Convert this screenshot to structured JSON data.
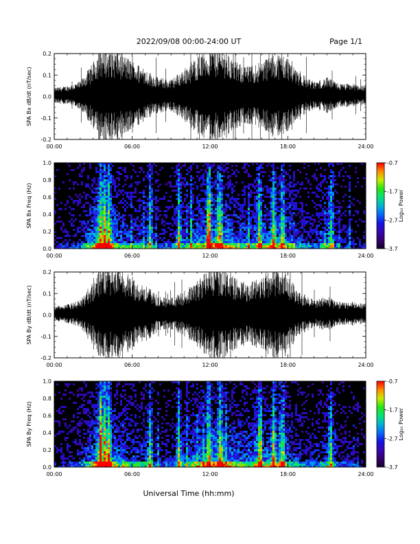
{
  "header": {
    "title": "2022/09/08  00:00-24:00 UT",
    "page": "Page 1/1"
  },
  "footer": {
    "xlabel": "Universal Time (hh:mm)"
  },
  "chart_data": [
    {
      "type": "line",
      "panel": "bx-timeseries",
      "ylabel": "SPA Bx dB/dt (nT/sec)",
      "xlim": [
        0,
        24
      ],
      "ylim": [
        -0.2,
        0.2
      ],
      "x_ticklabels": [
        "00:00",
        "06:00",
        "12:00",
        "18:00",
        "24:00"
      ],
      "y_ticks": [
        0.2,
        0.1,
        0.0,
        -0.1,
        -0.2
      ],
      "y_ticklabels": [
        "0.2",
        "0.1",
        "0.0",
        "-0.1",
        "-0.2"
      ],
      "series_color": "#000000",
      "amplitude_envelope": {
        "x_hours": [
          0,
          1,
          2,
          3,
          3.5,
          4,
          4.5,
          5,
          6,
          7,
          8,
          9,
          10,
          11,
          12,
          13,
          14,
          15,
          16,
          17,
          18,
          19,
          20,
          21,
          22,
          23,
          24
        ],
        "amplitude": [
          0.03,
          0.04,
          0.06,
          0.15,
          0.22,
          0.22,
          0.21,
          0.2,
          0.16,
          0.12,
          0.08,
          0.07,
          0.12,
          0.18,
          0.22,
          0.22,
          0.15,
          0.13,
          0.16,
          0.2,
          0.18,
          0.1,
          0.06,
          0.08,
          0.05,
          0.05,
          0.04
        ]
      }
    },
    {
      "type": "heatmap",
      "panel": "bx-spectrogram",
      "ylabel": "SPA Bx Freq (Hz)",
      "xlim": [
        0,
        24
      ],
      "ylim": [
        0,
        1
      ],
      "x_ticklabels": [
        "00:00",
        "06:00",
        "12:00",
        "18:00",
        "24:00"
      ],
      "y_ticks": [
        1.0,
        0.8,
        0.6,
        0.4,
        0.2,
        0.0
      ],
      "y_ticklabels": [
        "1.0",
        "0.8",
        "0.6",
        "0.4",
        "0.2",
        "0.0"
      ],
      "colorbar": {
        "label": "Log₁₀ Power",
        "range": [
          -3.7,
          -0.7
        ],
        "ticks": [
          "-0.7",
          "-1.7",
          "-2.7",
          "-3.7"
        ],
        "tick_values": [
          -0.7,
          -1.7,
          -2.7,
          -3.7
        ]
      },
      "activity_profile": {
        "x_hours": [
          0,
          1,
          2,
          3,
          3.5,
          4,
          5,
          6,
          7,
          8,
          9,
          10,
          11,
          12,
          13,
          14,
          15,
          16,
          17,
          18,
          19,
          20,
          21,
          22,
          23,
          24
        ],
        "level": [
          0.15,
          0.2,
          0.3,
          0.6,
          0.9,
          0.85,
          0.5,
          0.45,
          0.4,
          0.25,
          0.3,
          0.45,
          0.55,
          0.7,
          0.65,
          0.55,
          0.5,
          0.55,
          0.6,
          0.5,
          0.35,
          0.3,
          0.45,
          0.25,
          0.2,
          0.15
        ]
      },
      "bright_streaks_hours": [
        3.6,
        3.9,
        4.2,
        7.4,
        9.6,
        11.9,
        12.8,
        15.8,
        16.9,
        17.6,
        21.3
      ]
    },
    {
      "type": "line",
      "panel": "by-timeseries",
      "ylabel": "SPA By dB/dt (nT/sec)",
      "xlim": [
        0,
        24
      ],
      "ylim": [
        -0.2,
        0.2
      ],
      "x_ticklabels": [
        "00:00",
        "06:00",
        "12:00",
        "18:00",
        "24:00"
      ],
      "y_ticks": [
        0.2,
        0.1,
        0.0,
        -0.1,
        -0.2
      ],
      "y_ticklabels": [
        "0.2",
        "0.1",
        "0.0",
        "-0.1",
        "-0.2"
      ],
      "series_color": "#000000",
      "amplitude_envelope": {
        "x_hours": [
          0,
          1,
          2,
          3,
          3.5,
          4,
          4.5,
          5,
          6,
          7,
          8,
          9,
          10,
          11,
          12,
          13,
          14,
          15,
          16,
          17,
          18,
          19,
          20,
          21,
          22,
          23,
          24
        ],
        "amplitude": [
          0.03,
          0.04,
          0.06,
          0.15,
          0.22,
          0.22,
          0.21,
          0.2,
          0.17,
          0.13,
          0.08,
          0.07,
          0.1,
          0.15,
          0.22,
          0.22,
          0.16,
          0.14,
          0.18,
          0.21,
          0.17,
          0.1,
          0.06,
          0.08,
          0.05,
          0.05,
          0.04
        ]
      }
    },
    {
      "type": "heatmap",
      "panel": "by-spectrogram",
      "ylabel": "SPA By Freq (Hz)",
      "xlim": [
        0,
        24
      ],
      "ylim": [
        0,
        1
      ],
      "x_ticklabels": [
        "00:00",
        "06:00",
        "12:00",
        "18:00",
        "24:00"
      ],
      "y_ticks": [
        1.0,
        0.8,
        0.6,
        0.4,
        0.2,
        0.0
      ],
      "y_ticklabels": [
        "1.0",
        "0.8",
        "0.6",
        "0.4",
        "0.2",
        "0.0"
      ],
      "colorbar": {
        "label": "Log₁₀ Power",
        "range": [
          -3.7,
          -0.7
        ],
        "ticks": [
          "-0.7",
          "-1.7",
          "-2.7",
          "-3.7"
        ],
        "tick_values": [
          -0.7,
          -1.7,
          -2.7,
          -3.7
        ]
      },
      "activity_profile": {
        "x_hours": [
          0,
          1,
          2,
          3,
          3.5,
          4,
          5,
          6,
          7,
          8,
          9,
          10,
          11,
          12,
          13,
          14,
          15,
          16,
          17,
          18,
          19,
          20,
          21,
          22,
          23,
          24
        ],
        "level": [
          0.15,
          0.2,
          0.3,
          0.6,
          0.95,
          0.85,
          0.5,
          0.45,
          0.4,
          0.25,
          0.3,
          0.45,
          0.6,
          0.75,
          0.7,
          0.55,
          0.5,
          0.55,
          0.6,
          0.5,
          0.35,
          0.3,
          0.45,
          0.25,
          0.2,
          0.15
        ]
      },
      "bright_streaks_hours": [
        3.6,
        3.9,
        4.2,
        7.4,
        9.6,
        11.9,
        12.8,
        15.8,
        16.9,
        17.6,
        21.3
      ]
    }
  ]
}
